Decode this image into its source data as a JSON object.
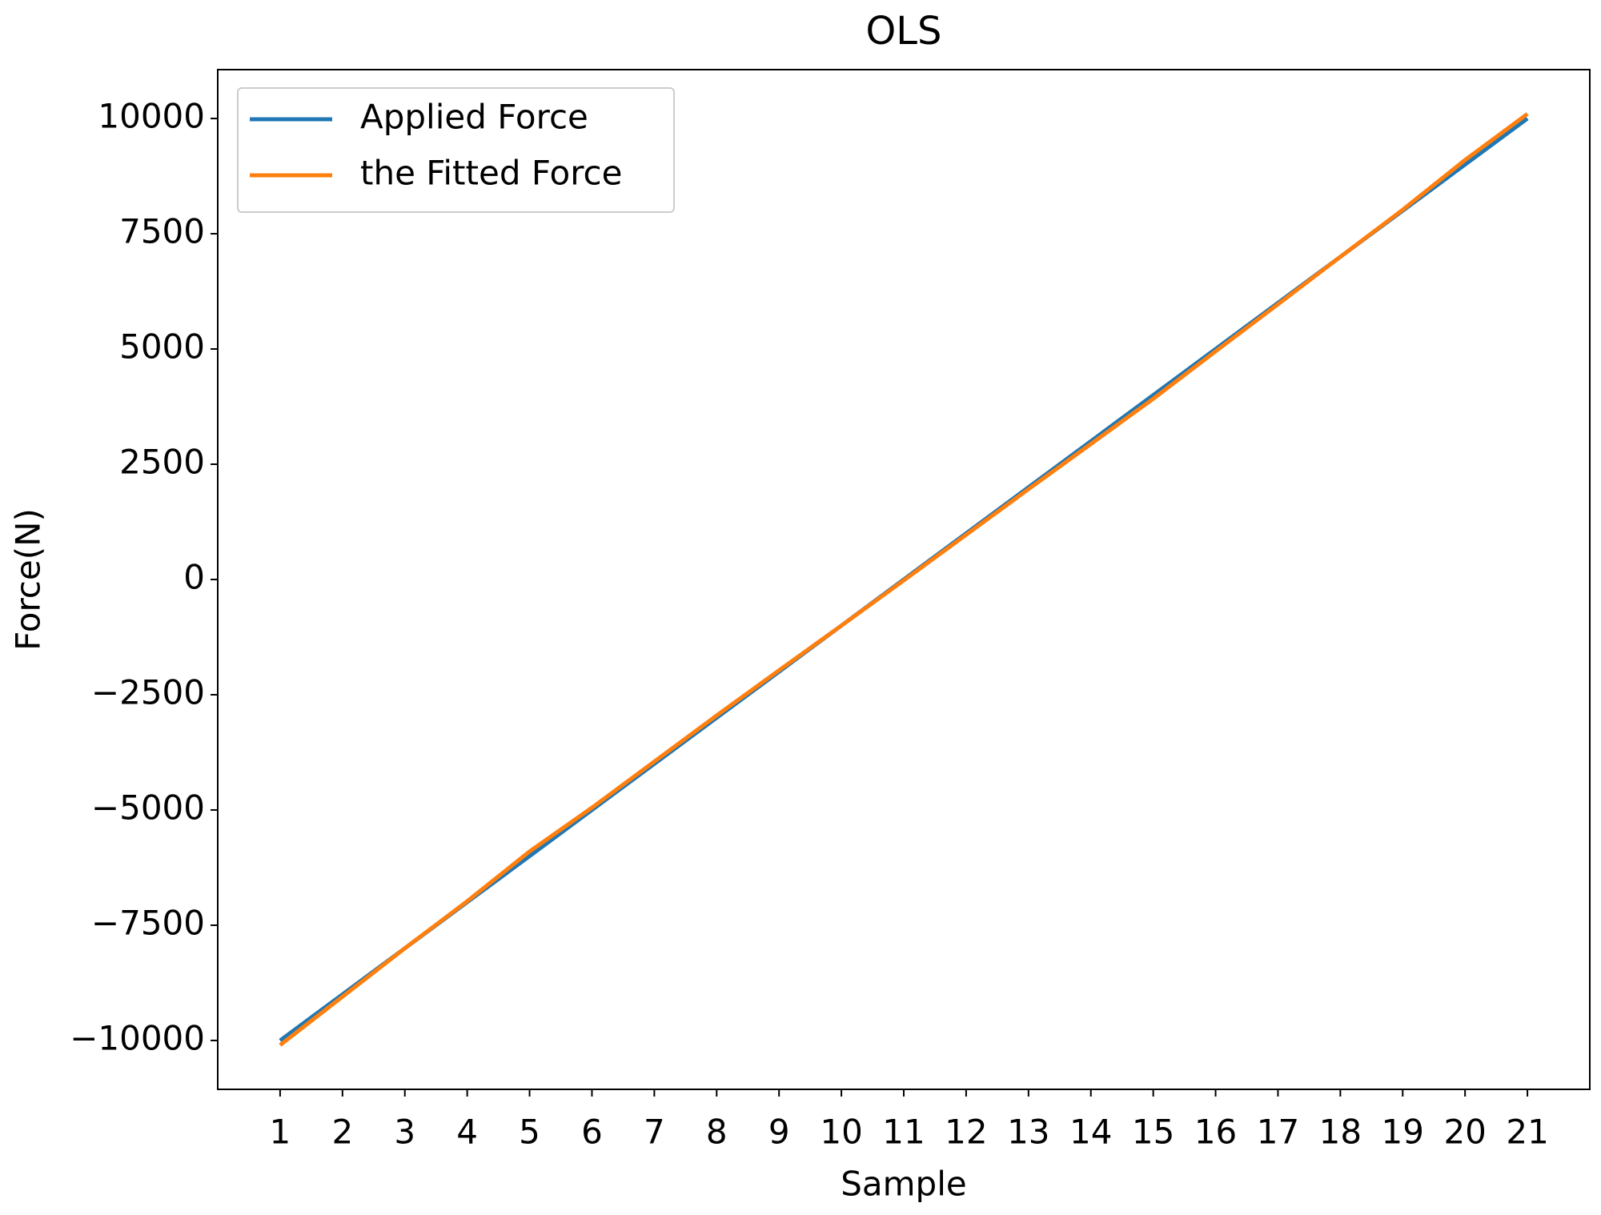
{
  "chart_data": {
    "type": "line",
    "title": "OLS",
    "x_label": "Sample",
    "y_label": "Force(N)",
    "x": [
      1,
      2,
      3,
      4,
      5,
      6,
      7,
      8,
      9,
      10,
      11,
      12,
      13,
      14,
      15,
      16,
      17,
      18,
      19,
      20,
      21
    ],
    "series": [
      {
        "name": "Applied Force",
        "color": "#1f77b4",
        "values": [
          -10000,
          -9000,
          -8000,
          -7000,
          -6000,
          -5000,
          -4000,
          -3000,
          -2000,
          -1000,
          0,
          1000,
          2000,
          3000,
          4000,
          5000,
          6000,
          7000,
          8000,
          9000,
          10000
        ]
      },
      {
        "name": "the Fitted Force",
        "color": "#ff7f0e",
        "values": [
          -10100,
          -9050,
          -8000,
          -6980,
          -5900,
          -4950,
          -3950,
          -2950,
          -1970,
          -1000,
          -20,
          970,
          1960,
          2940,
          3920,
          4950,
          5970,
          7000,
          8020,
          9100,
          10100
        ]
      }
    ],
    "xlim": [
      0,
      22
    ],
    "xticks": [
      1,
      2,
      3,
      4,
      5,
      6,
      7,
      8,
      9,
      10,
      11,
      12,
      13,
      14,
      15,
      16,
      17,
      18,
      19,
      20,
      21
    ],
    "ylim": [
      -11060,
      11060
    ],
    "yticks": [
      {
        "value": -10000,
        "label": "−10000"
      },
      {
        "value": -7500,
        "label": "−7500"
      },
      {
        "value": -5000,
        "label": "−5000"
      },
      {
        "value": -2500,
        "label": "−2500"
      },
      0,
      2500,
      5000,
      7500,
      10000
    ],
    "legend": "upper left",
    "grid": false
  }
}
